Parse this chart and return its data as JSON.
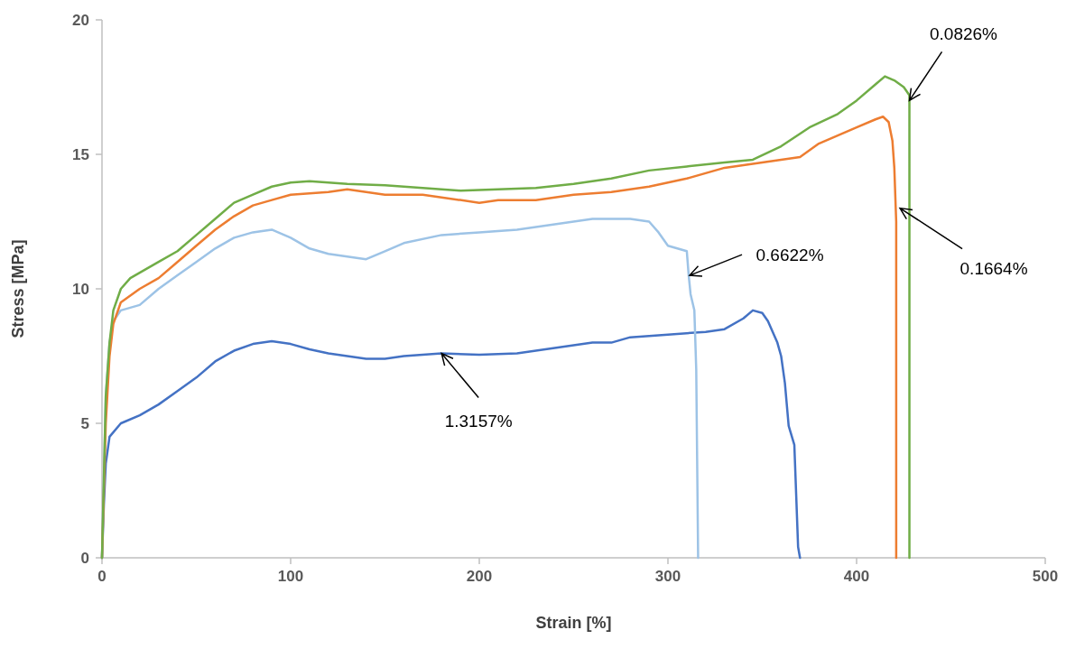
{
  "chart_data": {
    "type": "line",
    "xlabel": "Strain [%]",
    "ylabel": "Stress [MPa]",
    "xlim": [
      0,
      500
    ],
    "xticks": [
      0,
      100,
      200,
      300,
      400,
      500
    ],
    "ylim": [
      0,
      20
    ],
    "yticks": [
      0,
      5,
      10,
      15,
      20
    ],
    "grid": false,
    "marker": "none",
    "line_style": "solid",
    "series": [
      {
        "color": "#4472c4",
        "x": [
          0,
          1,
          2,
          4,
          10,
          20,
          30,
          40,
          50,
          60,
          70,
          80,
          90,
          100,
          110,
          120,
          130,
          140,
          150,
          160,
          180,
          200,
          220,
          240,
          260,
          270,
          280,
          300,
          320,
          330,
          340,
          345,
          350,
          353,
          358,
          360,
          362,
          364,
          367,
          369,
          370
        ],
        "values": [
          0,
          2,
          3.5,
          4.5,
          5,
          5.3,
          5.7,
          6.2,
          6.7,
          7.3,
          7.7,
          7.95,
          8.05,
          7.95,
          7.75,
          7.6,
          7.5,
          7.4,
          7.4,
          7.5,
          7.6,
          7.55,
          7.6,
          7.8,
          8,
          8,
          8.2,
          8.3,
          8.4,
          8.5,
          8.9,
          9.2,
          9.1,
          8.8,
          8,
          7.5,
          6.5,
          4.9,
          4.2,
          0.4,
          0
        ]
      },
      {
        "color": "#9dc3e6",
        "x": [
          0,
          1,
          2,
          4,
          6,
          10,
          20,
          30,
          40,
          50,
          60,
          70,
          80,
          90,
          100,
          110,
          120,
          130,
          140,
          150,
          160,
          180,
          200,
          220,
          240,
          260,
          280,
          290,
          295,
          300,
          305,
          310,
          311,
          312,
          314,
          315,
          316
        ],
        "values": [
          0,
          3,
          6,
          8,
          8.8,
          9.2,
          9.4,
          10,
          10.5,
          11,
          11.5,
          11.9,
          12.1,
          12.2,
          11.9,
          11.5,
          11.3,
          11.2,
          11.1,
          11.4,
          11.7,
          12,
          12.1,
          12.2,
          12.4,
          12.6,
          12.6,
          12.5,
          12.1,
          11.6,
          11.5,
          11.4,
          10.5,
          9.8,
          9.2,
          7,
          0
        ]
      },
      {
        "color": "#ed7d31",
        "x": [
          0,
          1,
          2,
          4,
          6,
          10,
          20,
          30,
          40,
          50,
          60,
          70,
          80,
          90,
          100,
          120,
          130,
          150,
          170,
          180,
          200,
          210,
          230,
          250,
          270,
          290,
          310,
          330,
          350,
          370,
          380,
          390,
          400,
          410,
          414,
          417,
          419,
          420,
          421,
          421
        ],
        "values": [
          0,
          2.5,
          5,
          7.5,
          8.7,
          9.5,
          10,
          10.4,
          11,
          11.6,
          12.2,
          12.7,
          13.1,
          13.3,
          13.5,
          13.6,
          13.7,
          13.5,
          13.5,
          13.4,
          13.2,
          13.3,
          13.3,
          13.5,
          13.6,
          13.8,
          14.1,
          14.5,
          14.7,
          14.9,
          15.4,
          15.7,
          16,
          16.3,
          16.4,
          16.2,
          15.5,
          14.5,
          12.5,
          0
        ]
      },
      {
        "color": "#70ad47",
        "x": [
          0,
          1,
          2,
          4,
          6,
          10,
          15,
          20,
          30,
          40,
          50,
          60,
          70,
          80,
          90,
          100,
          110,
          130,
          150,
          170,
          190,
          210,
          230,
          250,
          270,
          290,
          310,
          330,
          345,
          360,
          375,
          390,
          400,
          410,
          415,
          420,
          425,
          428,
          428,
          428
        ],
        "values": [
          0,
          3,
          6,
          8,
          9.2,
          10,
          10.4,
          10.6,
          11,
          11.4,
          12,
          12.6,
          13.2,
          13.5,
          13.8,
          13.95,
          14,
          13.9,
          13.85,
          13.75,
          13.65,
          13.7,
          13.75,
          13.9,
          14.1,
          14.4,
          14.55,
          14.7,
          14.8,
          15.3,
          16,
          16.5,
          17,
          17.6,
          17.9,
          17.75,
          17.5,
          17.2,
          16.8,
          0
        ]
      }
    ],
    "annotations": [
      {
        "text": "0.0826%",
        "x": 428,
        "y": 17
      },
      {
        "text": "0.1664%",
        "x": 423,
        "y": 13
      },
      {
        "text": "0.6622%",
        "x": 311.5,
        "y": 10.5
      },
      {
        "text": "1.3157%",
        "x": 180,
        "y": 7.6
      }
    ]
  }
}
